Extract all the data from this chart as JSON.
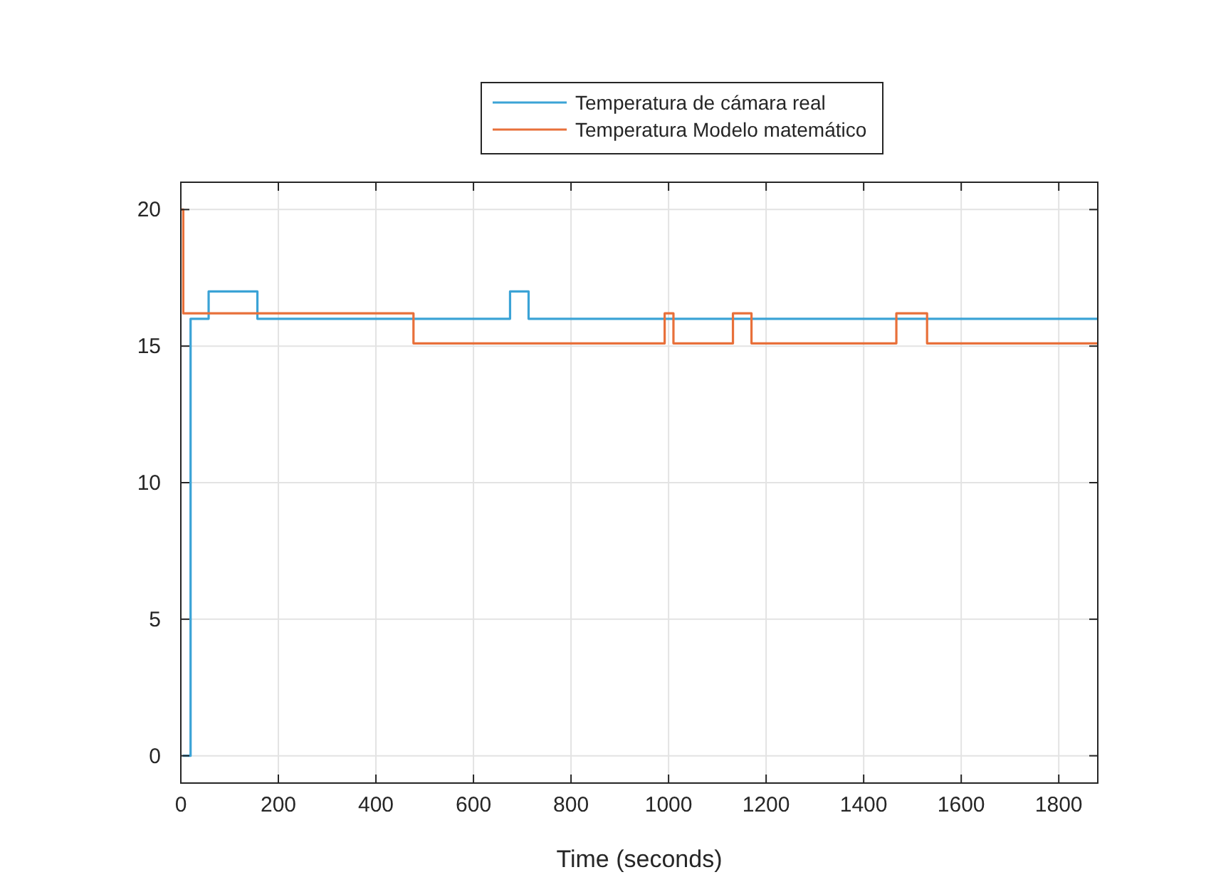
{
  "chart_data": {
    "type": "step",
    "xlabel": "Time (seconds)",
    "xlim": [
      0,
      1880
    ],
    "xticks": [
      0,
      200,
      400,
      600,
      800,
      1000,
      1200,
      1400,
      1600,
      1800
    ],
    "ylim": [
      -1,
      21
    ],
    "yticks": [
      0,
      5,
      10,
      15,
      20
    ],
    "grid": true,
    "legend": "top",
    "series": [
      {
        "name": "Temperatura de cámara real",
        "color": "#3ba3d6",
        "x": [
          4,
          20,
          57,
          157,
          675,
          713,
          1880
        ],
        "values": [
          0,
          16,
          17,
          16,
          17,
          16,
          16
        ]
      },
      {
        "name": "Temperatura Modelo matemático",
        "color": "#e8703a",
        "x": [
          0,
          5,
          477,
          992,
          1010,
          1132,
          1170,
          1467,
          1530,
          1880
        ],
        "values": [
          20,
          16.2,
          15.1,
          16.2,
          15.1,
          16.2,
          15.1,
          16.2,
          15.1,
          15.1
        ]
      }
    ]
  }
}
